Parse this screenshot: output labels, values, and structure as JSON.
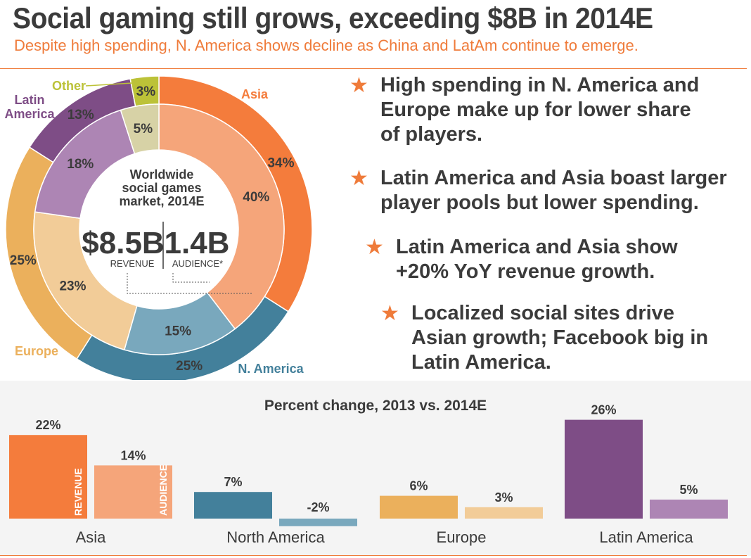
{
  "title": "Social gaming still grows, exceeding $8B in 2014E",
  "subtitle": "Despite high spending, N. America shows decline as China and LatAm continue to emerge.",
  "colors": {
    "accent": "#ef7b3a",
    "asia_revenue": "#f47c3c",
    "asia_audience": "#f5a57a",
    "namerica_revenue": "#43809b",
    "namerica_audience": "#79a8bd",
    "europe_revenue": "#ebb05c",
    "europe_audience": "#f2cc98",
    "latam_revenue": "#7e4d86",
    "latam_audience": "#ad85b4",
    "other_revenue": "#bcc238",
    "other_audience": "#d7d2a6"
  },
  "donut": {
    "center_title": [
      "Worldwide",
      "social games",
      "market, 2014E"
    ],
    "revenue_value": "$8.5B",
    "revenue_label": "REVENUE",
    "audience_value": "1.4B",
    "audience_label": "AUDIENCE*"
  },
  "bullets": [
    "High spending in N. America and Europe make up for lower share of players.",
    "Latin America and Asia boast larger player pools but lower spending.",
    "Latin America and Asia show +20% YoY revenue growth.",
    "Localized social sites drive Asian growth; Facebook big in Latin America."
  ],
  "chart_data": [
    {
      "type": "pie",
      "title": "Worldwide social games market, 2014E",
      "series": [
        {
          "name": "Revenue",
          "total": "$8.5B",
          "slices": [
            {
              "region": "Asia",
              "label": "Asia",
              "value": 34
            },
            {
              "region": "namerica",
              "label": "N. America",
              "value": 25
            },
            {
              "region": "europe",
              "label": "Europe",
              "value": 25
            },
            {
              "region": "latam",
              "label": "Latin\nAmerica",
              "value": 13
            },
            {
              "region": "other",
              "label": "Other",
              "value": 3
            }
          ]
        },
        {
          "name": "Audience",
          "total": "1.4B",
          "slices": [
            {
              "region": "Asia",
              "value": 40
            },
            {
              "region": "namerica",
              "value": 15
            },
            {
              "region": "europe",
              "value": 23
            },
            {
              "region": "latam",
              "value": 18
            },
            {
              "region": "other",
              "value": 5
            }
          ]
        }
      ]
    },
    {
      "type": "bar",
      "title": "Percent change, 2013 vs. 2014E",
      "categories": [
        "Asia",
        "North America",
        "Europe",
        "Latin America"
      ],
      "series": [
        {
          "name": "REVENUE",
          "values": [
            22,
            7,
            6,
            26
          ]
        },
        {
          "name": "AUDIENCE",
          "values": [
            14,
            -2,
            3,
            5
          ]
        }
      ],
      "value_suffix": "%",
      "ylim": [
        -3,
        27
      ]
    }
  ]
}
